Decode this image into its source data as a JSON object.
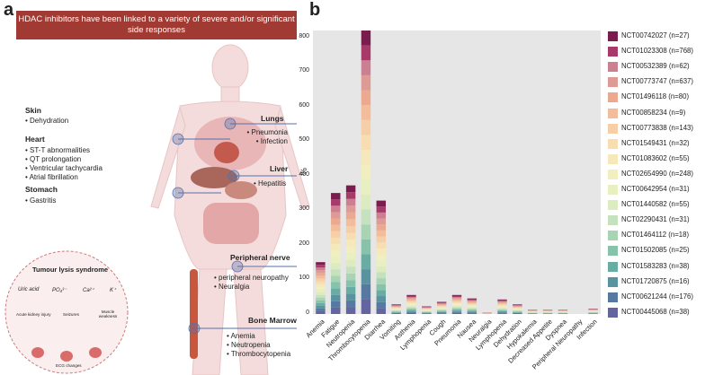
{
  "panel_a": {
    "label": "a",
    "banner": "HDAC inhibitors have been linked to a variety of severe and/or significant side responses",
    "skin": {
      "title": "Skin",
      "items": [
        "• Dehydration"
      ]
    },
    "heart": {
      "title": "Heart",
      "items": [
        "• ST-T abnormalities",
        "• QT prolongation",
        "• Ventricular tachycardia",
        "• Atrial fibrillation"
      ]
    },
    "stomach": {
      "title": "Stomach",
      "items": [
        "• Gastritis"
      ]
    },
    "lungs": {
      "title": "Lungs",
      "items": [
        "• Pneumonia",
        "• Infection"
      ]
    },
    "liver": {
      "title": "Liver",
      "items": [
        "• Hepatitis"
      ]
    },
    "nerve": {
      "title": "Peripheral nerve",
      "items": [
        "• peripheral neuropathy",
        "• Neuralgia"
      ]
    },
    "marrow": {
      "title": "Bone Marrow",
      "items": [
        "• Anemia",
        "• Neutropenia",
        "• Thrombocytopenia"
      ]
    },
    "tls": {
      "title": "Tumour lysis syndrome",
      "labels": [
        "Uric acid",
        "PO₄³⁻",
        "Ca²⁺",
        "K⁺"
      ],
      "effects": [
        "Acute kidney injury",
        "Seizures",
        "Muscle weakness",
        "ECG changes"
      ]
    }
  },
  "panel_b": {
    "label": "b"
  },
  "colors": [
    "#7b1c4e",
    "#a83a6a",
    "#cc7f91",
    "#de9b95",
    "#eca98f",
    "#f3bc9a",
    "#f6cfa8",
    "#f7ddb0",
    "#f5e8bb",
    "#f1eebf",
    "#e8efc0",
    "#dcebc0",
    "#c6e1bd",
    "#a8d4b3",
    "#87c2ab",
    "#69aca4",
    "#5a93a0",
    "#5679a1",
    "#6364a0"
  ],
  "chart_data": {
    "type": "bar",
    "stacked": true,
    "ylabel": "%",
    "ylim": [
      0,
      820
    ],
    "yticks": [
      0,
      100,
      200,
      300,
      400,
      500,
      600,
      700,
      800
    ],
    "categories": [
      "Anemia",
      "Fatigue",
      "Neutropenia",
      "Thrombocytopenia",
      "Diarrhea",
      "Vomiting",
      "Asthenia",
      "Lymphopenia",
      "Cough",
      "Pneumonia",
      "Nausea",
      "Neuralgia",
      "Lymphopenia",
      "Dehydration",
      "Hypokalemia",
      "Decreased Appetite",
      "Dyspnea",
      "Peripheral Neuropathy",
      "Infection"
    ],
    "totals": [
      150,
      350,
      372,
      820,
      328,
      28,
      55,
      22,
      35,
      55,
      45,
      5,
      42,
      28,
      12,
      12,
      12,
      0,
      15
    ],
    "series": [
      {
        "name": "NCT00742027 (n=27)"
      },
      {
        "name": "NCT01023308 (n=768)"
      },
      {
        "name": "NCT00532389 (n=62)"
      },
      {
        "name": "NCT00773747 (n=637)"
      },
      {
        "name": "NCT01496118 (n=80)"
      },
      {
        "name": "NCT00858234 (n=9)"
      },
      {
        "name": "NCT00773838 (n=143)"
      },
      {
        "name": "NCT01549431 (n=32)"
      },
      {
        "name": "NCT01083602 (n=55)"
      },
      {
        "name": "NCT02654990 (n=248)"
      },
      {
        "name": "NCT00642954 (n=31)"
      },
      {
        "name": "NCT01440582 (n=55)"
      },
      {
        "name": "NCT02290431 (n=31)"
      },
      {
        "name": "NCT01464112 (n=18)"
      },
      {
        "name": "NCT01502085 (n=25)"
      },
      {
        "name": "NCT01583283 (n=38)"
      },
      {
        "name": "NCT01720875 (n=16)"
      },
      {
        "name": "NCT00621244 (n=176)"
      },
      {
        "name": "NCT00445068 (n=38)"
      }
    ]
  }
}
